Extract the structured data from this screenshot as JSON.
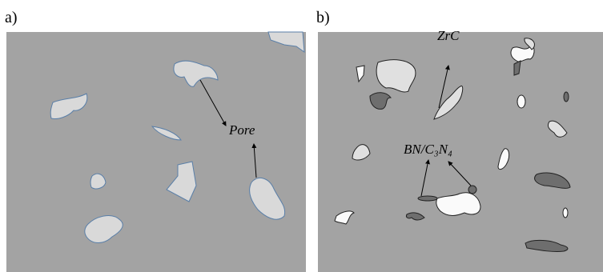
{
  "panels": [
    {
      "label": "a)",
      "annotations": [
        "Pore"
      ]
    },
    {
      "label": "b)",
      "annotations": [
        "ZrC",
        "BN/C₃N₄"
      ]
    }
  ]
}
